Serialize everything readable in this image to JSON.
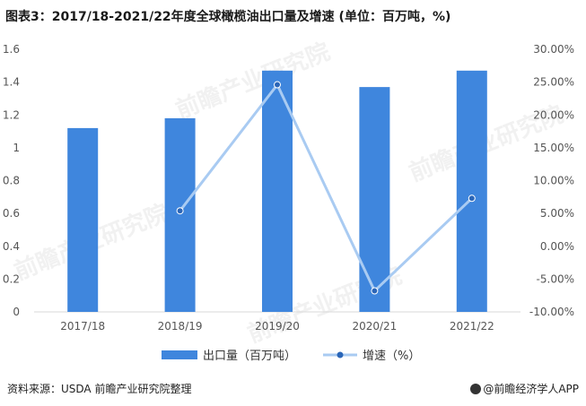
{
  "title": "图表3：2017/18-2021/22年度全球橄榄油出口量及增速 (单位：百万吨，%)",
  "source": "资料来源：USDA 前瞻产业研究院整理",
  "brand": "@前瞻经济学人APP",
  "watermark": "前瞻产业研究院",
  "colors": {
    "bar": "#3f86dd",
    "line": "#a9cbf2",
    "marker": "#2b66b8",
    "axis": "#d9d9d9",
    "text": "#555555"
  },
  "chart_data": {
    "type": "bar",
    "categories": [
      "2017/18",
      "2018/19",
      "2019/20",
      "2020/21",
      "2021/22"
    ],
    "series": [
      {
        "name": "出口量（百万吨）",
        "type": "bar",
        "axis": "left",
        "values": [
          1.12,
          1.18,
          1.47,
          1.37,
          1.47
        ]
      },
      {
        "name": "增速（%）",
        "type": "line",
        "axis": "right",
        "values": [
          null,
          5.4,
          24.6,
          -6.8,
          7.3
        ]
      }
    ],
    "y_left": {
      "min": 0,
      "max": 1.6,
      "ticks": [
        "0",
        "0.2",
        "0.4",
        "0.6",
        "0.8",
        "1",
        "1.2",
        "1.4",
        "1.6"
      ]
    },
    "y_right": {
      "min": -10,
      "max": 30,
      "ticks": [
        "-10.00%",
        "-5.00%",
        "0.00%",
        "5.00%",
        "10.00%",
        "15.00%",
        "20.00%",
        "25.00%",
        "30.00%"
      ]
    },
    "legend": {
      "position": "bottom",
      "bar_label": "出口量（百万吨）",
      "line_label": "增速（%）"
    },
    "grid": false
  }
}
